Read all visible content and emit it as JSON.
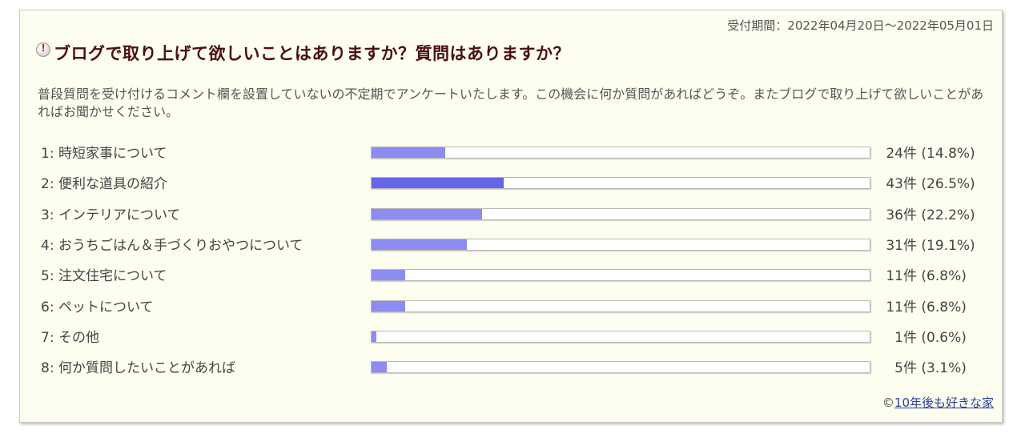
{
  "period": "受付期間：2022年04月20日～2022年05月01日",
  "title": "ブログで取り上げて欲しいことはありますか？質問はありますか？",
  "description": "普段質問を受け付けるコメント欄を設置していないの不定期でアンケートいたします。この機会に何か質問があればどうぞ。またブログで取り上げて欲しいことがあればお聞かせください。",
  "icon": "question-icon",
  "colors": {
    "bar": "#8c8cf2",
    "bar_max": "#6565e8",
    "title": "#4a1010",
    "background": "#fdfdf0"
  },
  "options": [
    {
      "label": "1: 時短家事について",
      "count": "24件",
      "pct": "(14.8%)",
      "value": 14.8
    },
    {
      "label": "2: 便利な道具の紹介",
      "count": "43件",
      "pct": "(26.5%)",
      "value": 26.5
    },
    {
      "label": "3: インテリアについて",
      "count": "36件",
      "pct": "(22.2%)",
      "value": 22.2
    },
    {
      "label": "4: おうちごはん＆手づくりおやつについて",
      "count": "31件",
      "pct": "(19.1%)",
      "value": 19.1
    },
    {
      "label": "5: 注文住宅について",
      "count": "11件",
      "pct": "(6.8%)",
      "value": 6.8
    },
    {
      "label": "6: ペットについて",
      "count": "11件",
      "pct": "(6.8%)",
      "value": 6.8
    },
    {
      "label": "7: その他",
      "count": "1件",
      "pct": "(0.6%)",
      "value": 0.6
    },
    {
      "label": "8: 何か質問したいことがあれば",
      "count": "5件",
      "pct": "(3.1%)",
      "value": 3.1
    }
  ],
  "footer": {
    "prefix": "©",
    "link_text": "10年後も好きな家"
  }
}
